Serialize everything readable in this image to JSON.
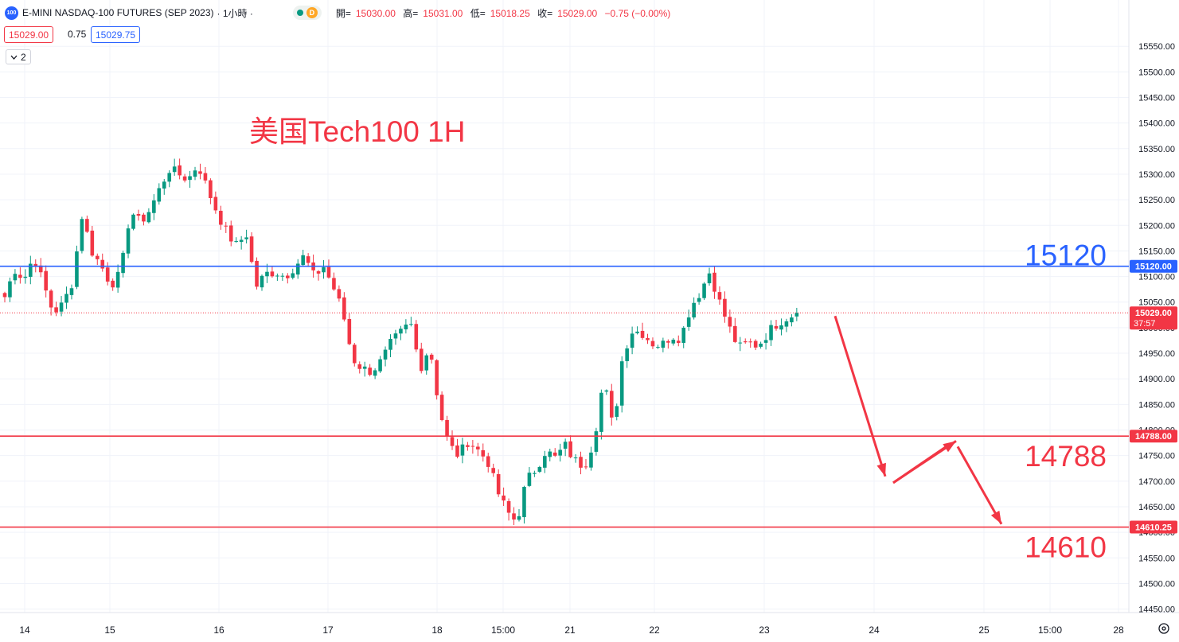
{
  "header": {
    "symbol_icon_text": "100",
    "title": "E-MINI NASDAQ-100 FUTURES (SEP 2023)",
    "interval": "· 1小時 ·",
    "delay_badge": "D",
    "ohlc": [
      {
        "label": "開=",
        "value": "15030.00"
      },
      {
        "label": "高=",
        "value": "15031.00"
      },
      {
        "label": "低=",
        "value": "15018.25"
      },
      {
        "label": "收=",
        "value": "15029.00"
      },
      {
        "label": "",
        "value": "−0.75 (−0.00%)"
      }
    ]
  },
  "quote": {
    "bid": "15029.00",
    "spread": "0.75",
    "ask": "15029.75"
  },
  "indicators_toggle": "2",
  "annotation_title": "美国Tech100 1H",
  "colors": {
    "up": "#089981",
    "down": "#f23645",
    "blue": "#2962ff",
    "red": "#f23645",
    "grid": "#f0f3fa",
    "axis_text": "#131722"
  },
  "chart_data": {
    "type": "candlestick",
    "title": "美国Tech100 1H",
    "y_range": [
      14410,
      15590
    ],
    "y_ticks": [
      14450,
      14500,
      14550,
      14600,
      14650,
      14700,
      14750,
      14800,
      14850,
      14900,
      14950,
      15000,
      15050,
      15100,
      15150,
      15200,
      15250,
      15300,
      15350,
      15400,
      15450,
      15500,
      15550
    ],
    "y_tick_labels": [
      "14450.00",
      "14500.00",
      "14550.00",
      "14600.00",
      "14650.00",
      "14700.00",
      "14750.00",
      "14800.00",
      "14850.00",
      "14900.00",
      "14950.00",
      "15000.00",
      "15050.00",
      "15100.00",
      "15150.00",
      "15200.00",
      "15250.00",
      "15300.00",
      "15350.00",
      "15400.00",
      "15450.00",
      "15500.00",
      "15550.00"
    ],
    "x_labels": [
      "14",
      "15",
      "16",
      "17",
      "18",
      "15:00",
      "21",
      "22",
      "23",
      "24",
      "25",
      "15:00",
      "28"
    ],
    "candles_count": 155,
    "candle_anchor_closes": [
      15060,
      15115,
      15095,
      15140,
      15085,
      15030,
      15045,
      15090,
      15220,
      15150,
      15120,
      15085,
      15105,
      15230,
      15205,
      15230,
      15270,
      15310,
      15300,
      15290,
      15320,
      15270,
      15225,
      15185,
      15160,
      15185,
      15080,
      15105,
      15110,
      15100,
      15120,
      15140,
      15100,
      15120,
      15080,
      15030,
      14940,
      14920,
      14915,
      14935,
      14970,
      14990,
      15010,
      14920,
      14965,
      14840,
      14770,
      14750,
      14780,
      14760,
      14740,
      14680,
      14640,
      14620,
      14700,
      14725,
      14760,
      14745,
      14770,
      14740,
      14730,
      14780,
      14900,
      14800,
      14950,
      14995,
      14990,
      14970,
      14965,
      14985,
      14980,
      15040,
      15070,
      15110,
      15050,
      15000,
      14960,
      14970,
      14965,
      14990,
      15010,
      15020,
      15029
    ],
    "horizontal_lines": [
      {
        "value": 15120,
        "label": "15120",
        "tag": "15120.00",
        "color": "#2962ff"
      },
      {
        "value": 14788,
        "label": "14788",
        "tag": "14788.00",
        "color": "#f23645"
      },
      {
        "value": 14610.25,
        "label": "14610",
        "tag": "14610.25",
        "color": "#f23645"
      }
    ],
    "last_price": {
      "value": 15029,
      "tag": "15029.00",
      "countdown": "37:57"
    },
    "projection_path": [
      15029,
      14700,
      14780,
      14610
    ]
  }
}
